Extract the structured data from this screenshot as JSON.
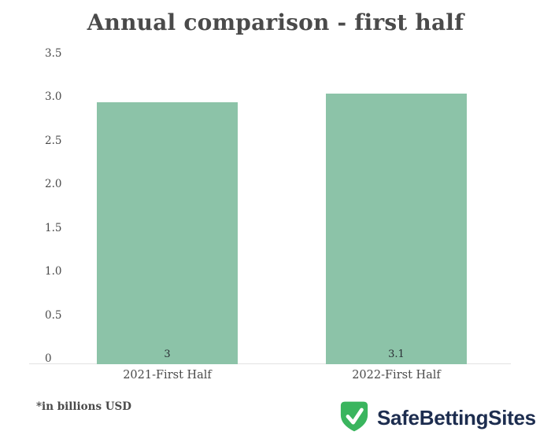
{
  "chart_data": {
    "type": "bar",
    "title": "Annual comparison - first half",
    "categories": [
      "2021-First Half",
      "2022-First Half"
    ],
    "values": [
      3,
      3.1
    ],
    "bar_labels": [
      "3",
      "3.1"
    ],
    "ylim": [
      0,
      3.5
    ],
    "yticks": [
      0,
      0.5,
      1.0,
      1.5,
      2.0,
      2.5,
      3.0,
      3.5
    ],
    "ytick_labels": [
      "0",
      "0.5",
      "1.0",
      "1.5",
      "2.0",
      "2.5",
      "3.0",
      "3.5"
    ],
    "grid": false,
    "legend": "none",
    "xlabel": "",
    "ylabel": "",
    "bar_color": "#8cc3a8"
  },
  "footnote": "*in billions USD",
  "logo": {
    "text": "SafeBettingSites",
    "icon": "shield-check-icon",
    "shield_color": "#3ab55e",
    "check_color": "#ffffff",
    "text_color": "#1d2d4f"
  },
  "colors": {
    "title_text": "#4a4a4a",
    "tick_text": "#4a4a4a",
    "bar_value_text": "#2a2e35",
    "axis_line": "#e2e2e2",
    "background": "#ffffff"
  }
}
